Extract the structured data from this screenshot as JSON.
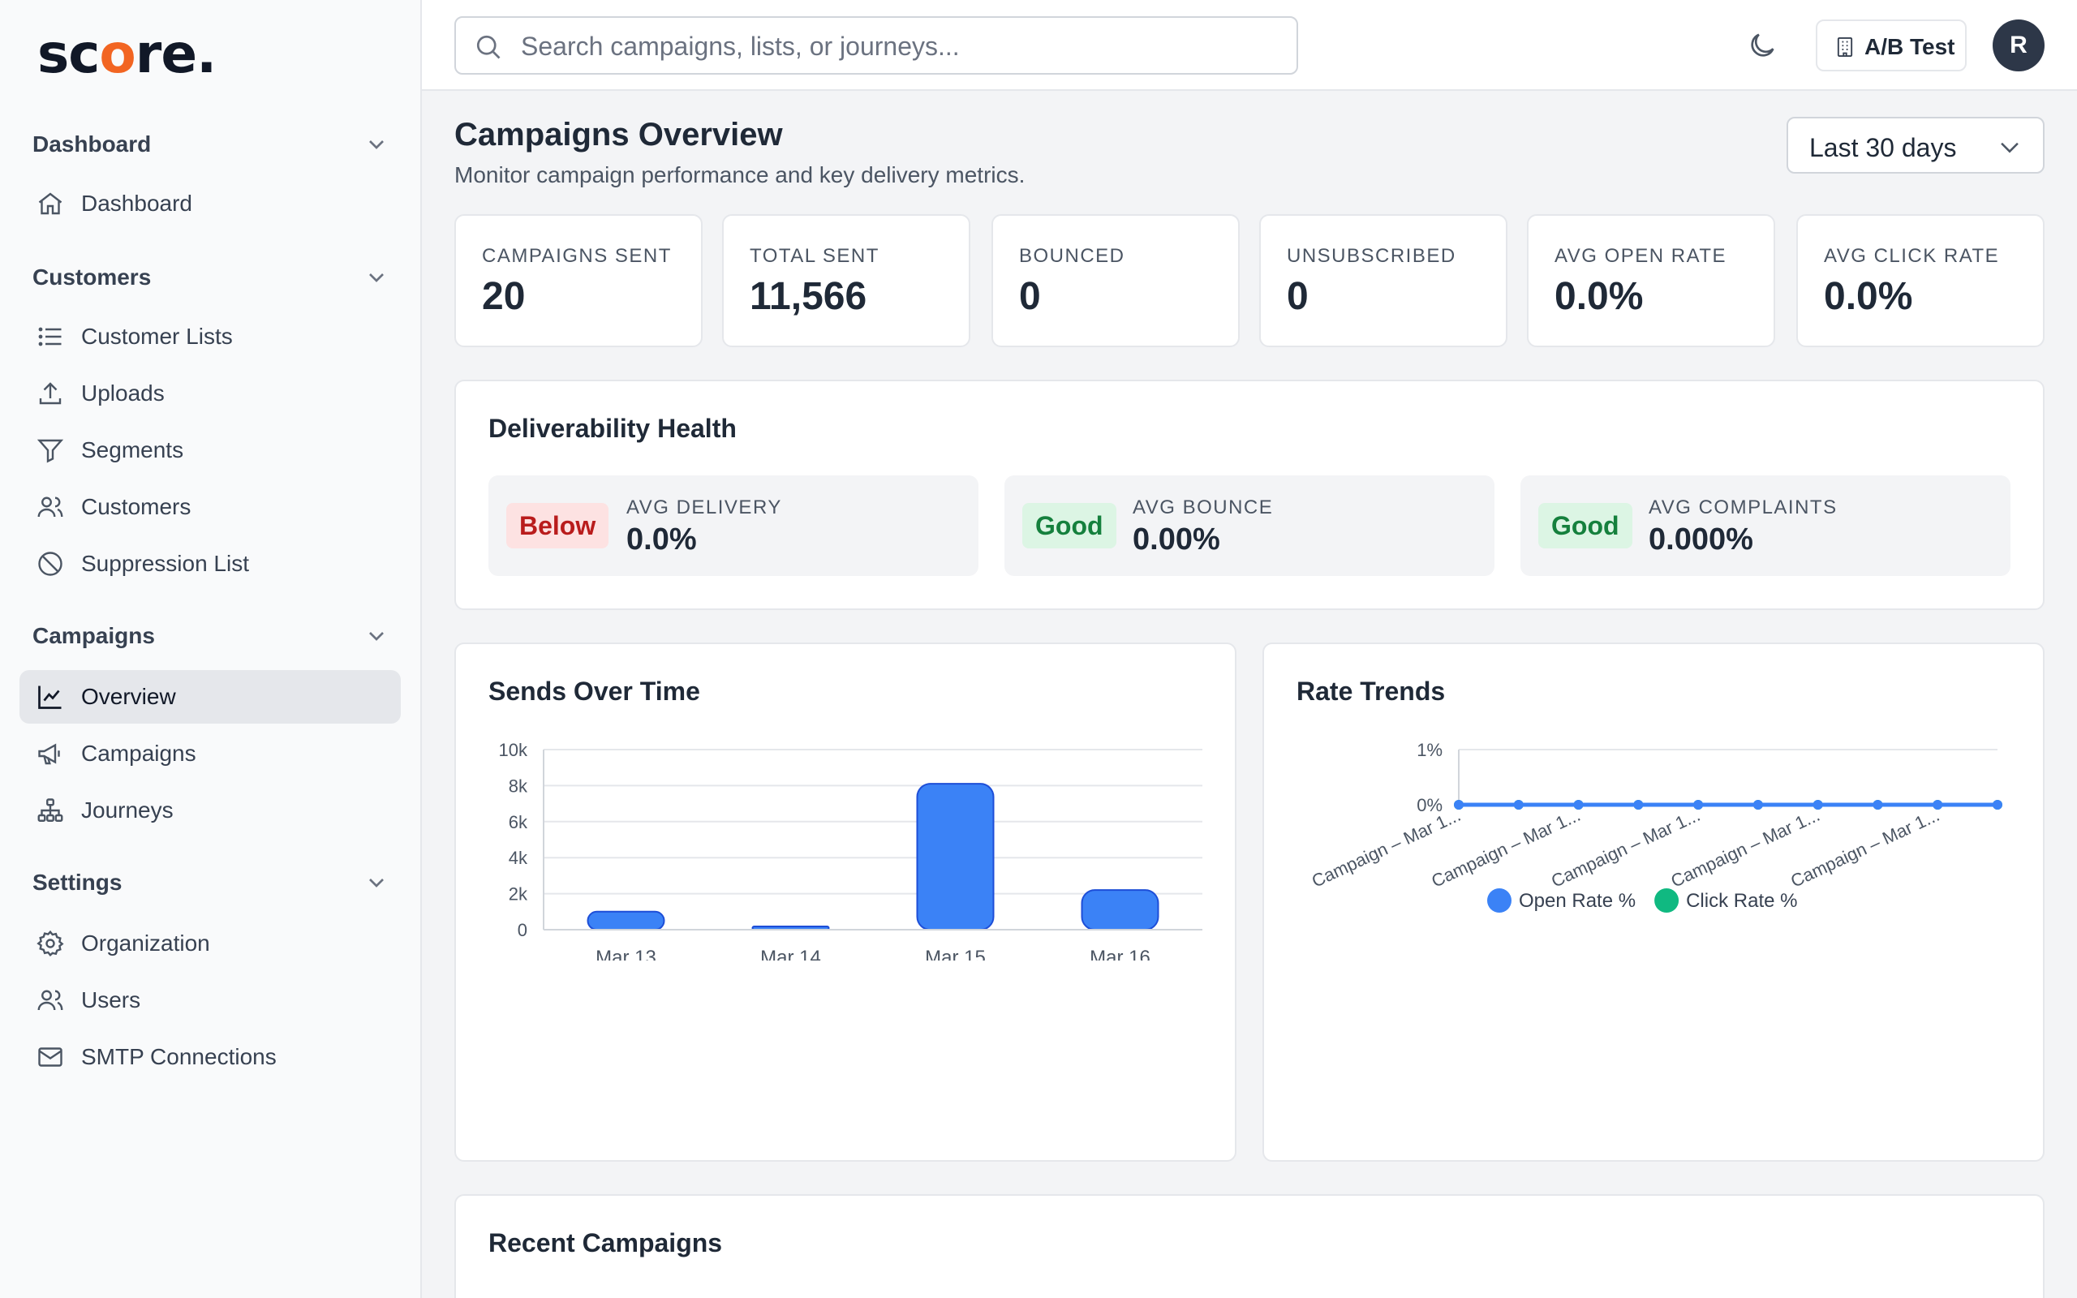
{
  "sidebar": {
    "logo": {
      "pre": "sc",
      "accent": "o",
      "post": "re."
    },
    "sections": [
      {
        "title": "Dashboard",
        "items": [
          {
            "label": "Dashboard",
            "icon": "home-icon"
          }
        ]
      },
      {
        "title": "Customers",
        "items": [
          {
            "label": "Customer Lists",
            "icon": "list-icon"
          },
          {
            "label": "Uploads",
            "icon": "upload-icon"
          },
          {
            "label": "Segments",
            "icon": "filter-icon"
          },
          {
            "label": "Customers",
            "icon": "users-icon"
          },
          {
            "label": "Suppression List",
            "icon": "ban-icon"
          }
        ]
      },
      {
        "title": "Campaigns",
        "items": [
          {
            "label": "Overview",
            "icon": "chart-line-icon",
            "active": true
          },
          {
            "label": "Campaigns",
            "icon": "megaphone-icon"
          },
          {
            "label": "Journeys",
            "icon": "sitemap-icon"
          }
        ]
      },
      {
        "title": "Settings",
        "items": [
          {
            "label": "Organization",
            "icon": "gear-icon"
          },
          {
            "label": "Users",
            "icon": "users-icon"
          },
          {
            "label": "SMTP Connections",
            "icon": "mail-icon"
          }
        ]
      }
    ]
  },
  "topbar": {
    "search_placeholder": "Search campaigns, lists, or journeys...",
    "org_button": "A/B Test",
    "avatar_initial": "R"
  },
  "header": {
    "title": "Campaigns Overview",
    "subtitle": "Monitor campaign performance and key delivery metrics.",
    "date_range": "Last 30 days"
  },
  "stats": [
    {
      "label": "CAMPAIGNS SENT",
      "value": "20"
    },
    {
      "label": "TOTAL SENT",
      "value": "11,566"
    },
    {
      "label": "BOUNCED",
      "value": "0"
    },
    {
      "label": "UNSUBSCRIBED",
      "value": "0"
    },
    {
      "label": "AVG OPEN RATE",
      "value": "0.0%"
    },
    {
      "label": "AVG CLICK RATE",
      "value": "0.0%"
    }
  ],
  "deliverability": {
    "title": "Deliverability Health",
    "items": [
      {
        "badge": "Below",
        "status": "bad",
        "label": "AVG DELIVERY",
        "value": "0.0%"
      },
      {
        "badge": "Good",
        "status": "good",
        "label": "AVG BOUNCE",
        "value": "0.00%"
      },
      {
        "badge": "Good",
        "status": "good",
        "label": "AVG COMPLAINTS",
        "value": "0.000%"
      }
    ]
  },
  "sends_chart": {
    "title": "Sends Over Time"
  },
  "rate_chart": {
    "title": "Rate Trends"
  },
  "recent": {
    "title": "Recent Campaigns"
  },
  "colors": {
    "accent": "#3b82f6",
    "green": "#10b981",
    "logo_accent": "#f26522"
  },
  "chart_data": [
    {
      "type": "bar",
      "categories": [
        "Mar 13",
        "Mar 14",
        "Mar 15",
        "Mar 16"
      ],
      "values": [
        1000,
        100,
        8100,
        2200
      ],
      "y_ticks": [
        "0",
        "2k",
        "4k",
        "6k",
        "8k",
        "10k"
      ],
      "ylim": [
        0,
        10000
      ],
      "grid": true
    },
    {
      "type": "line",
      "x_labels": [
        "Campaign – Mar 1...",
        "Campaign – Mar 1...",
        "Campaign – Mar 1...",
        "Campaign – Mar 1...",
        "Campaign – Mar 1..."
      ],
      "point_count": 10,
      "y_ticks": [
        "0%",
        "1%"
      ],
      "ylim": [
        0,
        1
      ],
      "series": [
        {
          "name": "Open Rate %",
          "color": "#3b82f6",
          "values": [
            0,
            0,
            0,
            0,
            0,
            0,
            0,
            0,
            0,
            0
          ]
        },
        {
          "name": "Click Rate %",
          "color": "#10b981",
          "values": [
            0,
            0,
            0,
            0,
            0,
            0,
            0,
            0,
            0,
            0
          ]
        }
      ],
      "legend": "bottom"
    }
  ]
}
